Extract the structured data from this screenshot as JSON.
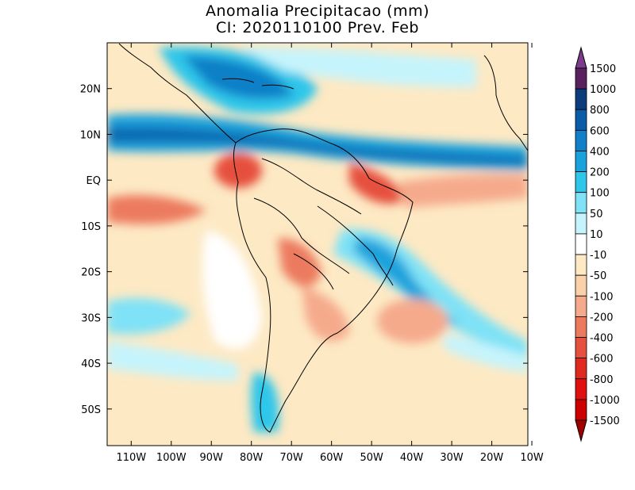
{
  "title": {
    "line1": "Anomalia Precipitacao (mm)",
    "line2": "CI: 2020110100 Prev. Feb"
  },
  "map": {
    "lon_range": [
      -116,
      -11
    ],
    "lat_range": [
      -58,
      30
    ],
    "lon_ticks": [
      "110W",
      "100W",
      "90W",
      "80W",
      "70W",
      "60W",
      "50W",
      "40W",
      "30W",
      "20W",
      "10W"
    ],
    "lat_ticks": [
      "20N",
      "10N",
      "EQ",
      "10S",
      "20S",
      "30S",
      "40S",
      "50S"
    ]
  },
  "colorbar": {
    "levels": [
      "1500",
      "1000",
      "800",
      "600",
      "400",
      "200",
      "100",
      "50",
      "10",
      "-10",
      "-50",
      "-100",
      "-200",
      "-400",
      "-600",
      "-800",
      "-1000",
      "-1500"
    ],
    "colors": [
      "#7b3c8c",
      "#5a2160",
      "#0b3c7c",
      "#0a5ca8",
      "#1180c8",
      "#1aa2dc",
      "#2ec6ea",
      "#7fe2f6",
      "#c6f4fc",
      "#ffffff",
      "#fde9c4",
      "#fad1a8",
      "#f5aa8c",
      "#ec7a5e",
      "#e6503e",
      "#e02a20",
      "#e01010",
      "#cc0000",
      "#a00000"
    ]
  }
}
